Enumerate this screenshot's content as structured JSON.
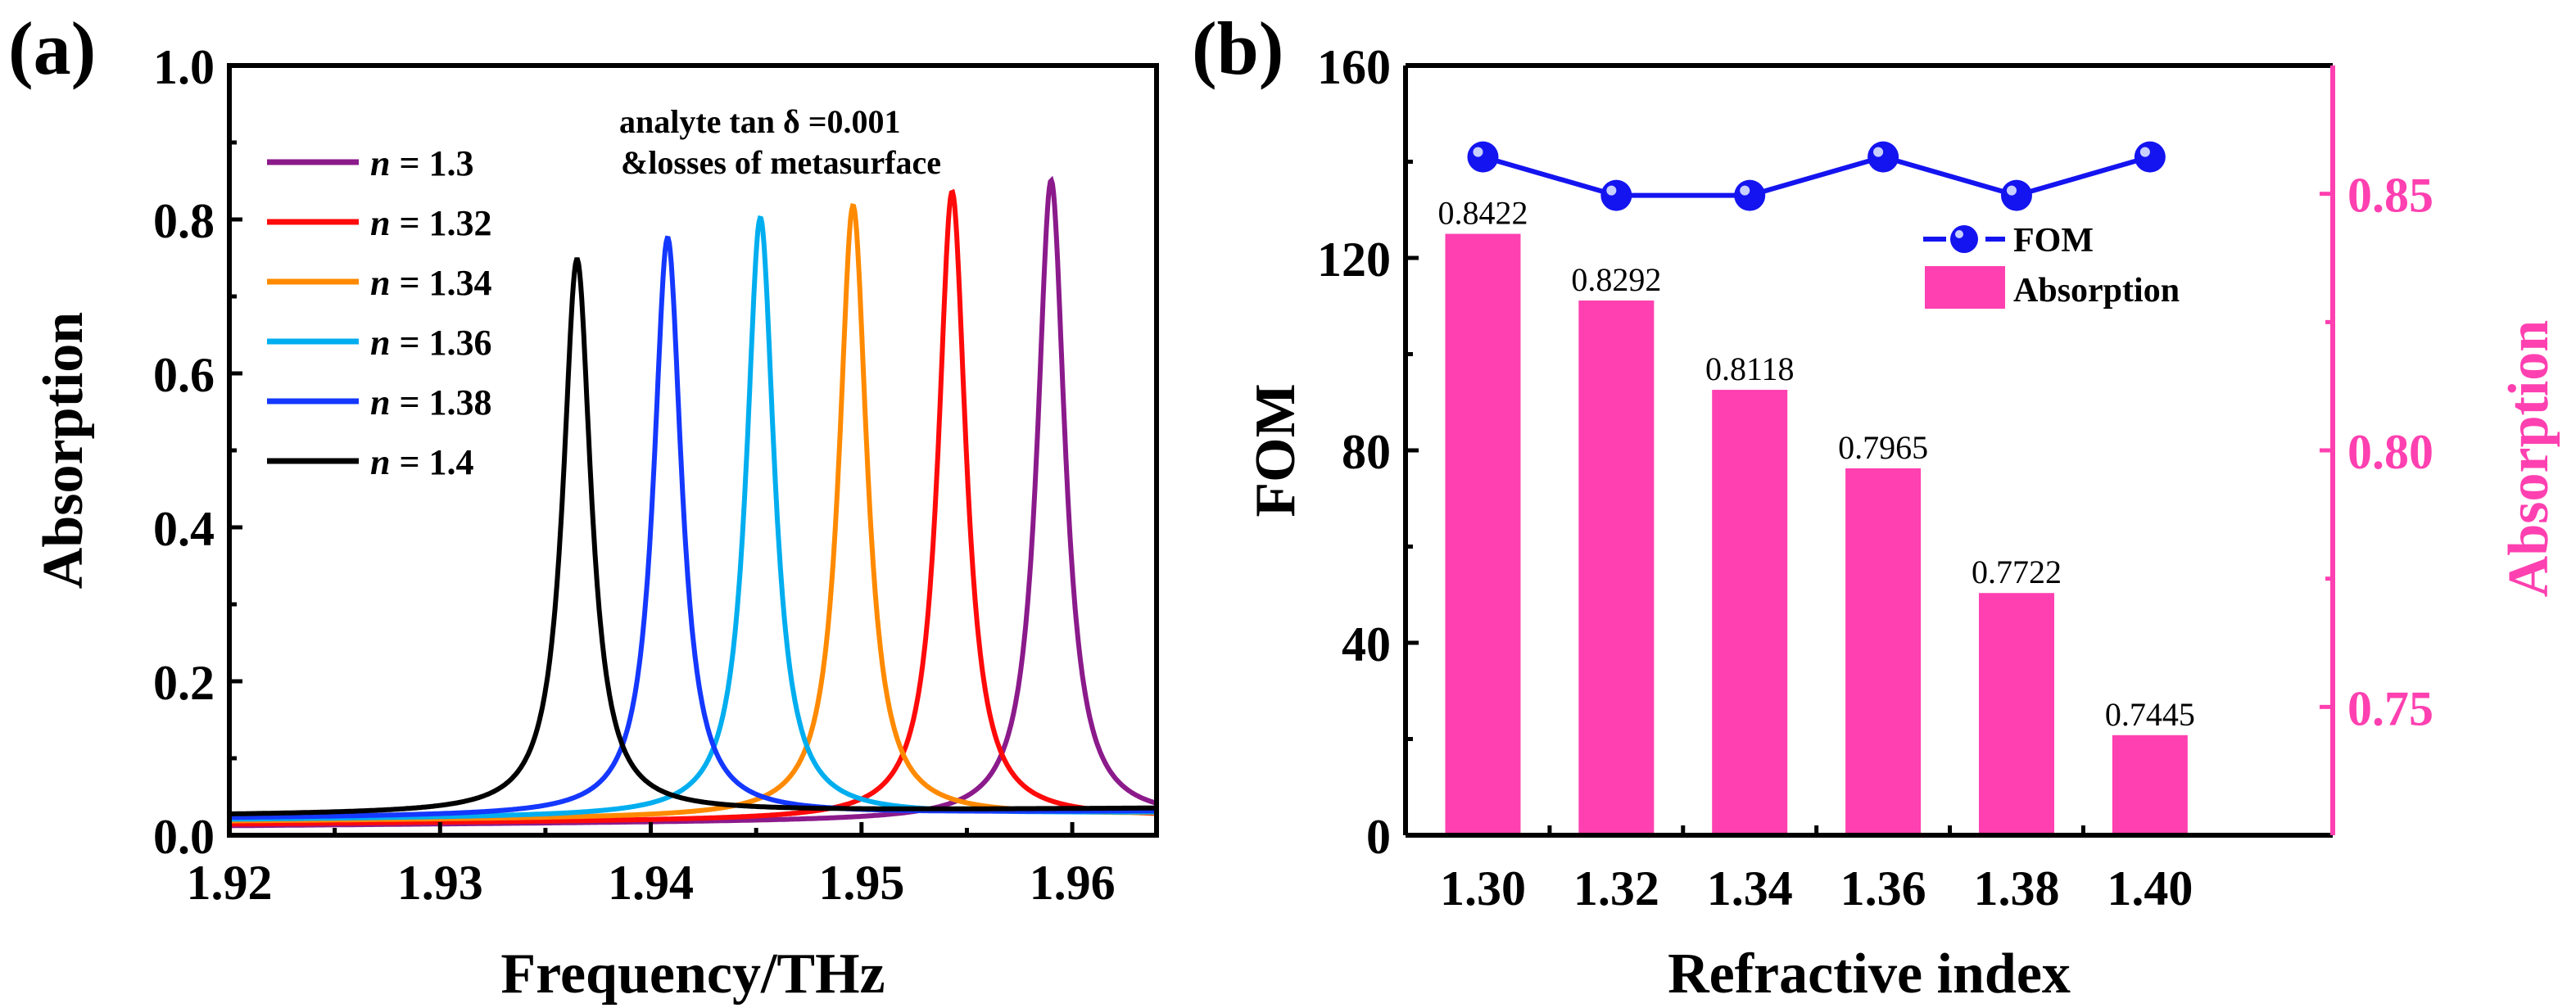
{
  "chart_data": [
    {
      "panel_label": "(a)",
      "type": "line",
      "xlabel": "Frequency/THz",
      "ylabel": "Absorption",
      "xlim": [
        1.92,
        1.964
      ],
      "ylim": [
        0,
        1.0
      ],
      "xticks": [
        "1.92",
        "1.93",
        "1.94",
        "1.95",
        "1.96"
      ],
      "xtick_values": [
        1.92,
        1.93,
        1.94,
        1.95,
        1.96
      ],
      "yticks": [
        "0.0",
        "0.2",
        "0.4",
        "0.6",
        "0.8",
        "1.0"
      ],
      "ytick_values": [
        0,
        0.2,
        0.4,
        0.6,
        0.8,
        1.0
      ],
      "annotation": [
        "analyte tan δ =0.001",
        "&losses of metasurface"
      ],
      "legend_position": "top-left",
      "linewidth_hwhm_thz": 0.0008,
      "series": [
        {
          "name_prefix": "n",
          "name_value": " = 1.3",
          "color": "#8B1A8B",
          "peak_x": 1.959,
          "peak_y": 0.843,
          "baseline": 0.012
        },
        {
          "name_prefix": "n",
          "name_value": " = 1.32",
          "color": "#FF0A0A",
          "peak_x": 1.9543,
          "peak_y": 0.829,
          "baseline": 0.014
        },
        {
          "name_prefix": "n",
          "name_value": " = 1.34",
          "color": "#FF8A00",
          "peak_x": 1.9496,
          "peak_y": 0.812,
          "baseline": 0.018
        },
        {
          "name_prefix": "n",
          "name_value": " = 1.36",
          "color": "#00AEEF",
          "peak_x": 1.9452,
          "peak_y": 0.797,
          "baseline": 0.02
        },
        {
          "name_prefix": "n",
          "name_value": " = 1.38",
          "color": "#1438FF",
          "peak_x": 1.9408,
          "peak_y": 0.772,
          "baseline": 0.022
        },
        {
          "name_prefix": "n",
          "name_value": " = 1.4",
          "color": "#000000",
          "peak_x": 1.9365,
          "peak_y": 0.745,
          "baseline": 0.026
        }
      ]
    },
    {
      "panel_label": "(b)",
      "type": "bar",
      "xlabel": "Refractive index",
      "ylabel": "FOM",
      "ylabel_right": "Absorption",
      "categories": [
        "1.30",
        "1.32",
        "1.34",
        "1.36",
        "1.38",
        "1.40"
      ],
      "ylim": [
        0,
        160
      ],
      "yticks": [
        "0",
        "40",
        "80",
        "120",
        "160"
      ],
      "ytick_values": [
        0,
        40,
        80,
        120,
        160
      ],
      "ylim_right": [
        0.725,
        0.875
      ],
      "yticks_right": [
        "0.75",
        "0.80",
        "0.85"
      ],
      "ytick_values_right": [
        0.75,
        0.8,
        0.85
      ],
      "legend_position": "top-right",
      "series": [
        {
          "name": "FOM",
          "type": "line",
          "axis": "left",
          "color": "#1414F0",
          "values": [
            141,
            133,
            133,
            141,
            133,
            141
          ]
        },
        {
          "name": "Absorption",
          "type": "bar",
          "axis": "right",
          "color": "#FF40B0",
          "values": [
            0.8422,
            0.8292,
            0.8118,
            0.7965,
            0.7722,
            0.7445
          ],
          "labels": [
            "0.8422",
            "0.8292",
            "0.8118",
            "0.7965",
            "0.7722",
            "0.7445"
          ]
        }
      ]
    }
  ]
}
